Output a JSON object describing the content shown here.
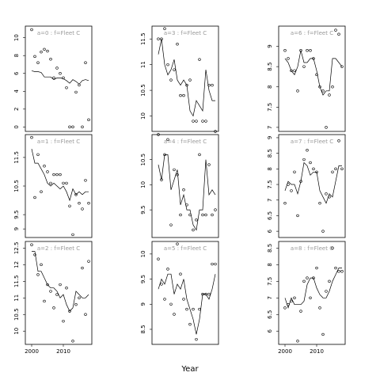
{
  "chart_data": [
    {
      "type": "scatter",
      "title": "a=0 : f=Fleet C",
      "x": [
        2000,
        2001,
        2002,
        2003,
        2004,
        2005,
        2006,
        2007,
        2008,
        2009,
        2010,
        2011,
        2012,
        2013,
        2014,
        2015,
        2016,
        2017,
        2018
      ],
      "values": [
        10.9,
        7.9,
        7.2,
        8.4,
        8.7,
        8.5,
        7.6,
        5.5,
        6.6,
        6.0,
        5.5,
        4.4,
        0,
        0,
        3.9,
        4.7,
        0,
        7.2,
        0.8
      ],
      "line": [
        6.3,
        6.2,
        6.2,
        6.1,
        5.6,
        5.6,
        5.6,
        5.3,
        5.5,
        5.5,
        5.4,
        5.2,
        4.9,
        5.3,
        5.1,
        4.8,
        5.2,
        5.3,
        5.2
      ],
      "xlim": [
        1998,
        2019
      ],
      "ylim": [
        -0.5,
        11.3
      ],
      "yticks": [
        0,
        2,
        4,
        6,
        8,
        10
      ]
    },
    {
      "type": "scatter",
      "title": "a=1 : f=Fleet C",
      "x": [
        2000,
        2001,
        2002,
        2003,
        2004,
        2005,
        2006,
        2007,
        2008,
        2009,
        2010,
        2011,
        2012,
        2013,
        2014,
        2015,
        2016,
        2017,
        2018
      ],
      "values": [
        12.2,
        10.1,
        11.6,
        10.3,
        11.2,
        11.0,
        10.6,
        10.9,
        10.9,
        10.9,
        10.6,
        10.6,
        9.8,
        8.8,
        10.2,
        9.9,
        9.7,
        10.7,
        9.9
      ],
      "line": [
        11.8,
        11.3,
        11.3,
        11.1,
        10.9,
        10.6,
        10.5,
        10.6,
        10.5,
        10.4,
        10.5,
        10.3,
        10.0,
        10.4,
        10.2,
        10.3,
        10.2,
        10.3,
        10.3
      ],
      "xlim": [
        1998,
        2019
      ],
      "ylim": [
        8.7,
        12.3
      ],
      "yticks": [
        9.0,
        9.5,
        10.5,
        11.5
      ]
    },
    {
      "type": "scatter",
      "title": "a=2 : f=Fleet C",
      "x": [
        2000,
        2001,
        2002,
        2003,
        2004,
        2005,
        2006,
        2007,
        2008,
        2009,
        2010,
        2011,
        2012,
        2013,
        2014,
        2015,
        2016,
        2017,
        2018
      ],
      "values": [
        12.6,
        12.3,
        11.7,
        12.0,
        10.9,
        11.4,
        11.2,
        10.7,
        11.1,
        11.4,
        10.3,
        11.3,
        10.6,
        9.7,
        10.8,
        11.0,
        11.9,
        10.5,
        12.1
      ],
      "line": [
        12.4,
        12.4,
        11.8,
        11.8,
        11.6,
        11.4,
        11.3,
        11.3,
        11.2,
        11.0,
        11.1,
        10.8,
        10.6,
        10.7,
        11.2,
        11.1,
        11.0,
        11.0,
        11.1
      ],
      "xlim": [
        1998,
        2019
      ],
      "ylim": [
        9.6,
        12.7
      ],
      "yticks": [
        10.0,
        10.5,
        11.0,
        11.5,
        12.0,
        12.5
      ],
      "xticks": [
        2000,
        2010
      ]
    },
    {
      "type": "scatter",
      "title": "a=3 : f=Fleet C",
      "x": [
        2000,
        2001,
        2002,
        2003,
        2004,
        2005,
        2006,
        2007,
        2008,
        2009,
        2010,
        2011,
        2012,
        2013,
        2014,
        2015,
        2016,
        2017,
        2018
      ],
      "values": [
        11.5,
        11.5,
        11.7,
        11.0,
        10.7,
        10.9,
        11.4,
        10.4,
        10.4,
        10.6,
        10.7,
        9.9,
        9.9,
        11.1,
        9.9,
        9.9,
        10.6,
        10.6,
        9.7
      ],
      "line": [
        11.2,
        11.5,
        11.0,
        10.8,
        10.9,
        11.1,
        10.7,
        10.6,
        10.7,
        10.6,
        10.1,
        10.0,
        10.3,
        10.2,
        10.1,
        10.9,
        10.5,
        10.3,
        10.3
      ],
      "xlim": [
        1998,
        2019
      ],
      "ylim": [
        9.7,
        11.75
      ],
      "yticks": [
        10.0,
        10.5,
        11.0,
        11.5
      ]
    },
    {
      "type": "scatter",
      "title": "a=4 : f=Fleet C",
      "x": [
        2000,
        2001,
        2002,
        2003,
        2004,
        2005,
        2006,
        2007,
        2008,
        2009,
        2010,
        2011,
        2012,
        2013,
        2014,
        2015,
        2016,
        2017,
        2018
      ],
      "values": [
        11.0,
        10.1,
        10.6,
        10.9,
        9.2,
        10.3,
        10.2,
        9.4,
        9.9,
        9.6,
        9.4,
        9.1,
        9.3,
        10.6,
        9.4,
        9.4,
        10.4,
        9.4,
        9.5
      ],
      "line": [
        10.4,
        10.1,
        10.6,
        10.6,
        9.9,
        10.1,
        10.3,
        9.6,
        9.8,
        9.5,
        9.5,
        9.2,
        9.1,
        9.5,
        9.5,
        10.5,
        9.8,
        9.9,
        9.8
      ],
      "xlim": [
        1998,
        2019
      ],
      "ylim": [
        8.95,
        11.0
      ],
      "yticks": [
        9.5,
        10.0,
        10.5
      ]
    },
    {
      "type": "scatter",
      "title": "a=5 : f=Fleet C",
      "x": [
        2000,
        2001,
        2002,
        2003,
        2004,
        2005,
        2006,
        2007,
        2008,
        2009,
        2010,
        2011,
        2012,
        2013,
        2014,
        2015,
        2016,
        2017,
        2018
      ],
      "values": [
        9.9,
        9.4,
        9.1,
        9.7,
        9.0,
        8.8,
        10.2,
        9.6,
        9.1,
        8.9,
        8.6,
        8.9,
        8.3,
        8.9,
        9.2,
        9.2,
        9.2,
        9.8,
        9.8
      ],
      "line": [
        9.3,
        9.5,
        9.4,
        9.6,
        9.6,
        9.2,
        9.4,
        9.3,
        9.5,
        9.1,
        8.9,
        8.7,
        8.4,
        8.7,
        9.2,
        9.2,
        9.1,
        9.3,
        9.6
      ],
      "xlim": [
        1998,
        2019
      ],
      "ylim": [
        8.2,
        10.25
      ],
      "yticks": [
        8.5,
        9.0,
        9.5,
        10.0
      ]
    },
    {
      "type": "scatter",
      "title": "a=6 : f=Fleet C",
      "x": [
        2000,
        2001,
        2002,
        2003,
        2004,
        2005,
        2006,
        2007,
        2008,
        2009,
        2010,
        2011,
        2012,
        2013,
        2014,
        2015,
        2016,
        2017,
        2018
      ],
      "values": [
        8.9,
        8.7,
        8.4,
        8.4,
        7.9,
        8.9,
        8.5,
        8.9,
        8.9,
        8.7,
        8.3,
        8.0,
        7.9,
        7.0,
        7.8,
        8.0,
        9.4,
        9.3,
        8.5
      ],
      "line": [
        8.7,
        8.6,
        8.4,
        8.3,
        8.5,
        8.9,
        8.6,
        8.6,
        8.7,
        8.7,
        8.4,
        8.0,
        7.8,
        7.9,
        7.9,
        8.7,
        8.7,
        8.6,
        8.5
      ],
      "xlim": [
        1998,
        2019
      ],
      "ylim": [
        6.9,
        9.5
      ],
      "yticks": [
        7.0,
        7.5,
        8.0,
        8.5,
        9.0
      ]
    },
    {
      "type": "scatter",
      "title": "a=7 : f=Fleet C",
      "x": [
        2000,
        2001,
        2002,
        2003,
        2004,
        2005,
        2006,
        2007,
        2008,
        2009,
        2010,
        2011,
        2012,
        2013,
        2014,
        2015,
        2016,
        2017,
        2018
      ],
      "values": [
        6.9,
        7.5,
        7.3,
        7.9,
        6.5,
        7.6,
        8.3,
        8.6,
        8.2,
        8.0,
        7.9,
        6.9,
        6.0,
        7.2,
        7.1,
        7.9,
        8.0,
        8.9,
        8.0
      ],
      "line": [
        7.3,
        7.6,
        7.5,
        7.5,
        7.2,
        7.6,
        8.2,
        8.1,
        7.8,
        7.9,
        7.9,
        7.3,
        7.1,
        6.9,
        7.2,
        7.1,
        7.6,
        8.1,
        8.1
      ],
      "xlim": [
        1998,
        2019
      ],
      "ylim": [
        5.8,
        9.1
      ],
      "yticks": [
        6.0,
        6.5,
        7.0,
        7.5,
        8.0,
        8.5,
        9.0
      ]
    },
    {
      "type": "scatter",
      "title": "a=8 : f=Fleet C",
      "x": [
        2000,
        2001,
        2002,
        2003,
        2004,
        2005,
        2006,
        2007,
        2008,
        2009,
        2010,
        2011,
        2012,
        2013,
        2014,
        2015,
        2016,
        2017,
        2018
      ],
      "values": [
        6.7,
        6.8,
        6.9,
        7.0,
        5.7,
        6.6,
        7.5,
        7.6,
        7.0,
        7.6,
        7.9,
        6.7,
        5.9,
        7.2,
        7.5,
        8.5,
        7.9,
        7.8,
        7.8
      ],
      "line": [
        7.0,
        6.7,
        7.0,
        6.8,
        6.8,
        6.8,
        6.9,
        7.4,
        7.6,
        7.6,
        7.3,
        7.1,
        7.0,
        7.0,
        7.2,
        7.5,
        7.7,
        7.9,
        7.9
      ],
      "xlim": [
        1998,
        2019
      ],
      "ylim": [
        5.6,
        8.7
      ],
      "yticks": [
        6.0,
        6.5,
        7.0,
        7.5,
        8.0,
        8.5
      ],
      "xticks": [
        2000,
        2010
      ]
    }
  ],
  "xlabel": "Year"
}
